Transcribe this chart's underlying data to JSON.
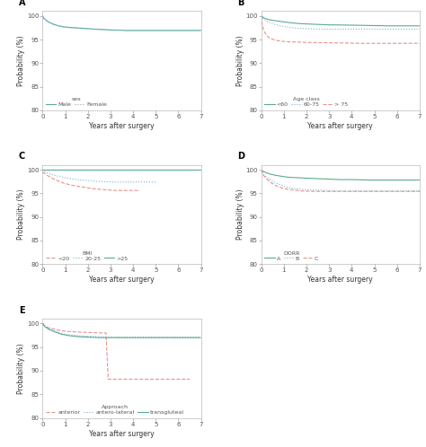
{
  "panels": {
    "A": {
      "label": "A",
      "legend_title": "sex",
      "legend_entries": [
        "Male",
        "Female"
      ],
      "line_styles": [
        "-",
        ":"
      ],
      "colors": [
        "#5aab91",
        "#7bafd4"
      ],
      "ylim": [
        80,
        101
      ],
      "yticks": [
        80,
        85,
        90,
        95,
        100
      ],
      "xlim": [
        0,
        7
      ],
      "xticks": [
        0,
        1,
        2,
        3,
        4,
        5,
        6,
        7
      ],
      "ylabel": "Probability (%)",
      "xlabel": "Years after surgery",
      "curves": [
        {
          "x": [
            0,
            0.05,
            0.15,
            0.3,
            0.5,
            0.7,
            0.9,
            1.1,
            1.4,
            1.7,
            2.0,
            2.3,
            2.7,
            3.0,
            3.3,
            3.7,
            4.2,
            4.8,
            5.5,
            7.0
          ],
          "y": [
            100,
            99.5,
            99.1,
            98.6,
            98.2,
            97.9,
            97.7,
            97.6,
            97.5,
            97.4,
            97.3,
            97.2,
            97.1,
            97.0,
            97.0,
            96.9,
            96.9,
            96.9,
            96.9,
            96.9
          ]
        },
        {
          "x": [
            0,
            0.1,
            0.25,
            0.45,
            0.65,
            0.9,
            1.15,
            1.5,
            1.9,
            2.3,
            2.8,
            3.2,
            3.8,
            4.5,
            5.5,
            7.0
          ],
          "y": [
            100,
            99.3,
            98.8,
            98.3,
            98.0,
            97.7,
            97.5,
            97.4,
            97.3,
            97.2,
            97.1,
            97.0,
            97.0,
            97.0,
            97.0,
            97.0
          ]
        }
      ]
    },
    "B": {
      "label": "B",
      "legend_title": "Age class",
      "legend_entries": [
        "<60",
        "60-75",
        "> 75"
      ],
      "line_styles": [
        "-",
        ":",
        "--"
      ],
      "colors": [
        "#5aab91",
        "#7bafd4",
        "#e8928a"
      ],
      "ylim": [
        80,
        101
      ],
      "yticks": [
        80,
        85,
        90,
        95,
        100
      ],
      "xlim": [
        0,
        7
      ],
      "xticks": [
        0,
        1,
        2,
        3,
        4,
        5,
        6,
        7
      ],
      "ylabel": "Probability (%)",
      "xlabel": "Years after surgery",
      "curves": [
        {
          "x": [
            0,
            0.15,
            0.35,
            0.6,
            0.9,
            1.2,
            1.6,
            2.0,
            2.5,
            3.0,
            3.3,
            4.5,
            5.5,
            7.0
          ],
          "y": [
            100,
            99.5,
            99.2,
            99.0,
            98.8,
            98.6,
            98.4,
            98.3,
            98.2,
            98.1,
            98.1,
            98.0,
            97.9,
            97.9
          ]
        },
        {
          "x": [
            0,
            0.1,
            0.3,
            0.55,
            0.85,
            1.2,
            1.6,
            2.0,
            2.4,
            2.8,
            3.2,
            4.0,
            5.0,
            7.0
          ],
          "y": [
            100,
            99.3,
            98.8,
            98.3,
            97.9,
            97.6,
            97.4,
            97.3,
            97.2,
            97.2,
            97.2,
            97.2,
            97.2,
            97.2
          ]
        },
        {
          "x": [
            0,
            0.05,
            0.12,
            0.25,
            0.4,
            0.6,
            0.8,
            1.0,
            1.3,
            2.0,
            3.2,
            4.5,
            7.0
          ],
          "y": [
            100,
            98.0,
            96.8,
            95.8,
            95.2,
            94.9,
            94.7,
            94.6,
            94.5,
            94.4,
            94.3,
            94.2,
            94.2
          ]
        }
      ]
    },
    "C": {
      "label": "C",
      "legend_title": "BMI",
      "legend_entries": [
        "<20",
        "20-25",
        ">25"
      ],
      "line_styles": [
        "--",
        ":",
        "-"
      ],
      "colors": [
        "#e8928a",
        "#7bafd4",
        "#5aab91"
      ],
      "ylim": [
        80,
        101
      ],
      "yticks": [
        80,
        85,
        90,
        95,
        100
      ],
      "xlim": [
        0,
        7
      ],
      "xticks": [
        0,
        1,
        2,
        3,
        4,
        5,
        6,
        7
      ],
      "ylabel": "Probability (%)",
      "xlabel": "Years after surgery",
      "curves": [
        {
          "x": [
            0,
            0.2,
            0.5,
            0.9,
            1.3,
            1.8,
            2.2,
            2.6,
            2.9,
            3.2,
            4.3
          ],
          "y": [
            99.5,
            98.8,
            98.0,
            97.2,
            96.7,
            96.3,
            96.0,
            95.8,
            95.7,
            95.6,
            95.6
          ]
        },
        {
          "x": [
            0,
            0.15,
            0.4,
            0.7,
            1.1,
            1.5,
            2.0,
            2.5,
            3.0,
            3.5,
            4.0,
            4.5,
            5.0
          ],
          "y": [
            100,
            99.4,
            99.0,
            98.6,
            98.2,
            97.9,
            97.7,
            97.5,
            97.4,
            97.4,
            97.4,
            97.4,
            97.4
          ]
        },
        {
          "x": [
            0,
            0.1,
            4.5,
            7.0
          ],
          "y": [
            100,
            100,
            100,
            100
          ]
        }
      ]
    },
    "D": {
      "label": "D",
      "legend_title": "DORR",
      "legend_entries": [
        "A",
        "B",
        "C"
      ],
      "line_styles": [
        "-",
        ":",
        "--"
      ],
      "colors": [
        "#5aab91",
        "#7bafd4",
        "#e8928a"
      ],
      "ylim": [
        80,
        101
      ],
      "yticks": [
        80,
        85,
        90,
        95,
        100
      ],
      "xlim": [
        0,
        7
      ],
      "xticks": [
        0,
        1,
        2,
        3,
        4,
        5,
        6,
        7
      ],
      "ylabel": "Probability (%)",
      "xlabel": "Years after surgery",
      "curves": [
        {
          "x": [
            0,
            0.1,
            0.25,
            0.45,
            0.65,
            0.9,
            1.2,
            1.6,
            2.0,
            2.5,
            3.0,
            3.5,
            4.0,
            4.8,
            5.5,
            7.0
          ],
          "y": [
            100,
            99.6,
            99.3,
            99.0,
            98.8,
            98.6,
            98.4,
            98.3,
            98.2,
            98.1,
            98.0,
            97.9,
            97.9,
            97.8,
            97.8,
            97.8
          ]
        },
        {
          "x": [
            0,
            0.1,
            0.3,
            0.55,
            0.85,
            1.15,
            1.5,
            1.9,
            2.3,
            2.8,
            3.3,
            4.0,
            4.8,
            7.0
          ],
          "y": [
            100,
            99.0,
            98.2,
            97.4,
            96.8,
            96.3,
            96.0,
            95.8,
            95.7,
            95.6,
            95.5,
            95.5,
            95.5,
            95.5
          ]
        },
        {
          "x": [
            0,
            0.1,
            0.25,
            0.45,
            0.7,
            1.0,
            1.4,
            1.8,
            2.3,
            2.8,
            3.3,
            4.0,
            5.0,
            7.0
          ],
          "y": [
            100,
            98.8,
            98.0,
            97.2,
            96.5,
            96.0,
            95.7,
            95.5,
            95.4,
            95.4,
            95.4,
            95.4,
            95.4,
            95.4
          ]
        }
      ]
    },
    "E": {
      "label": "E",
      "legend_title": "Approach",
      "legend_entries": [
        "anterior",
        "antero-lateral",
        "transgluteal"
      ],
      "line_styles": [
        "--",
        ":",
        "-"
      ],
      "colors": [
        "#e8928a",
        "#7bafd4",
        "#5aab91"
      ],
      "ylim": [
        80,
        101
      ],
      "yticks": [
        80,
        85,
        90,
        95,
        100
      ],
      "xlim": [
        0,
        7
      ],
      "xticks": [
        0,
        1,
        2,
        3,
        4,
        5,
        6,
        7
      ],
      "ylabel": "Probability (%)",
      "xlabel": "Years after surgery",
      "curves": [
        {
          "x": [
            0,
            0.1,
            0.25,
            0.5,
            0.8,
            1.1,
            1.5,
            2.0,
            2.5,
            2.8,
            2.9,
            3.0,
            6.5
          ],
          "y": [
            100,
            99.5,
            99.1,
            98.8,
            98.5,
            98.3,
            98.2,
            98.1,
            98.0,
            98.0,
            88.2,
            88.2,
            88.2
          ]
        },
        {
          "x": [
            0,
            0.1,
            0.3,
            0.55,
            0.85,
            1.2,
            1.6,
            2.0,
            2.5,
            3.0,
            3.5,
            4.0,
            4.5,
            5.5,
            7.0
          ],
          "y": [
            100,
            99.4,
            98.9,
            98.4,
            97.9,
            97.6,
            97.4,
            97.3,
            97.2,
            97.1,
            97.1,
            97.1,
            97.1,
            97.1,
            97.1
          ]
        },
        {
          "x": [
            0,
            0.1,
            0.3,
            0.55,
            0.85,
            1.2,
            1.6,
            2.0,
            2.5,
            3.0,
            3.5,
            4.0,
            4.5,
            5.0,
            5.5,
            6.0,
            6.5,
            7.0
          ],
          "y": [
            100,
            99.3,
            98.7,
            98.2,
            97.7,
            97.4,
            97.2,
            97.1,
            97.0,
            97.0,
            97.0,
            97.0,
            97.0,
            97.0,
            97.0,
            97.0,
            97.0,
            97.0
          ]
        }
      ]
    }
  },
  "figure_bg": "#ffffff",
  "axes_bg": "#ffffff",
  "tick_fontsize": 5,
  "label_fontsize": 5.5,
  "legend_fontsize": 4.5,
  "panel_label_fontsize": 7,
  "linewidth": 0.8
}
